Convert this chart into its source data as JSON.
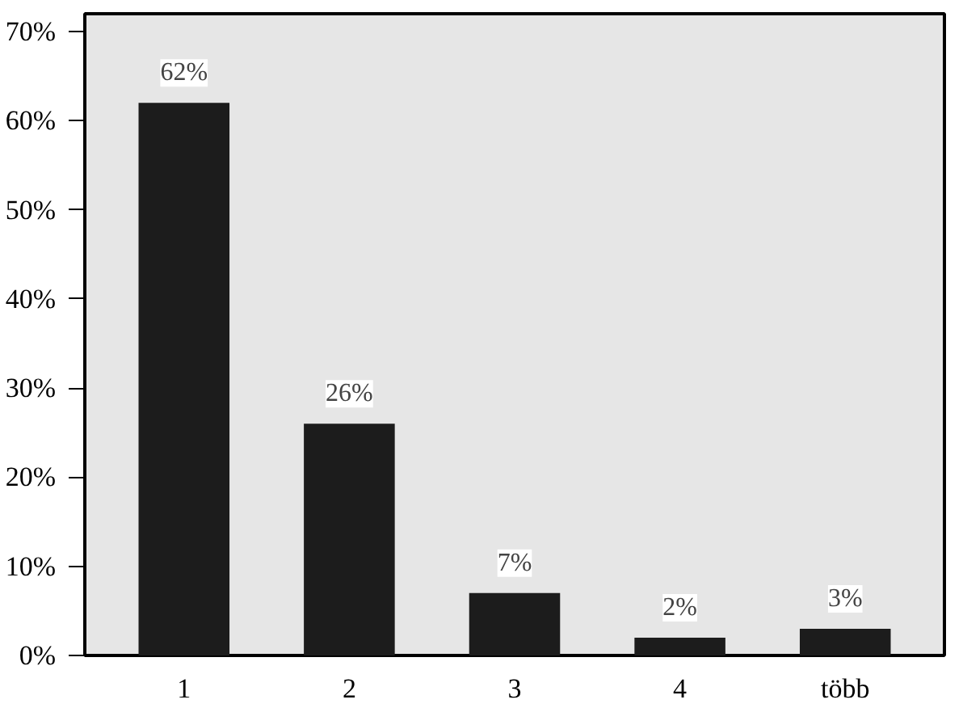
{
  "chart_data": {
    "type": "bar",
    "categories": [
      "1",
      "2",
      "3",
      "4",
      "több"
    ],
    "values": [
      62,
      26,
      7,
      2,
      3
    ],
    "value_labels": [
      "62%",
      "26%",
      "7%",
      "2%",
      "3%"
    ],
    "color": "#1c1c1c",
    "ylim": [
      0,
      72
    ],
    "yticks": [
      {
        "value": 0,
        "label": "0%"
      },
      {
        "value": 10,
        "label": "10%"
      },
      {
        "value": 20,
        "label": "20%"
      },
      {
        "value": 30,
        "label": "30%"
      },
      {
        "value": 40,
        "label": "40%"
      },
      {
        "value": 50,
        "label": "50%"
      },
      {
        "value": 60,
        "label": "60%"
      },
      {
        "value": 70,
        "label": "70%"
      }
    ],
    "grid": false
  }
}
